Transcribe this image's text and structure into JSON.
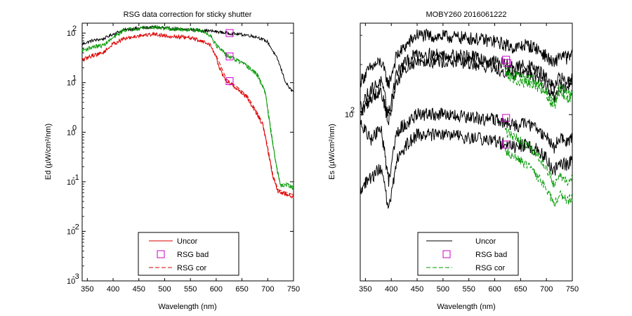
{
  "chart_data": [
    {
      "type": "line",
      "title": "RSG data correction for sticky shutter",
      "xlabel": "Wavelength (nm)",
      "ylabel": "Ed (µW/cm²/nm)",
      "xlim": [
        340,
        750
      ],
      "xticks": [
        350,
        400,
        450,
        500,
        550,
        600,
        650,
        700,
        750
      ],
      "ylog": true,
      "ylim_exp": [
        -3,
        2.2
      ],
      "yticks": [
        {
          "exp": 2,
          "label": "10",
          "sup": "2"
        },
        {
          "exp": 1,
          "label": "10",
          "sup": "1"
        },
        {
          "exp": 0,
          "label": "10",
          "sup": "0"
        },
        {
          "exp": -1,
          "label": "10",
          "sup": "-1"
        },
        {
          "exp": -2,
          "label": "10",
          "sup": "-2"
        },
        {
          "exp": -3,
          "label": "10",
          "sup": "-3"
        }
      ],
      "legend": {
        "position": "bottom-center",
        "entries": [
          {
            "label": "Uncor",
            "color": "#dd0000",
            "style": "solid"
          },
          {
            "label": "RSG bad",
            "color": "#cc00cc",
            "style": "square"
          },
          {
            "label": "RSG cor",
            "color": "#dd0000",
            "style": "dashed"
          }
        ]
      },
      "series": [
        {
          "color": "#000000",
          "style": "solid",
          "x": [
            340,
            360,
            380,
            400,
            420,
            450,
            480,
            500,
            520,
            550,
            580,
            600,
            620,
            640,
            660,
            680,
            700,
            720,
            735,
            745,
            750
          ],
          "logy": [
            1.78,
            1.85,
            1.88,
            1.98,
            2.06,
            2.1,
            2.12,
            2.1,
            2.08,
            2.07,
            2.05,
            2.03,
            2.0,
            1.98,
            1.96,
            1.92,
            1.82,
            1.45,
            1.0,
            0.85,
            0.82
          ],
          "noise": 0.03
        },
        {
          "color": "#009900",
          "style": "solid",
          "x": [
            340,
            360,
            380,
            400,
            420,
            450,
            480,
            500,
            520,
            550,
            570,
            590,
            600,
            620,
            640,
            660,
            680,
            695,
            705,
            715,
            725,
            735,
            745,
            750
          ],
          "logy": [
            1.65,
            1.72,
            1.75,
            1.9,
            2.06,
            2.1,
            2.12,
            2.1,
            2.08,
            2.07,
            2.05,
            1.95,
            1.75,
            1.55,
            1.45,
            1.33,
            1.15,
            0.8,
            0.1,
            -0.6,
            -1.1,
            -1.05,
            -1.1,
            -1.15
          ],
          "noise": 0.04
        },
        {
          "color": "#dd0000",
          "style": "solid",
          "x": [
            340,
            360,
            380,
            400,
            420,
            450,
            480,
            500,
            520,
            550,
            570,
            590,
            600,
            610,
            620,
            640,
            660,
            680,
            690,
            700,
            710,
            720,
            735,
            750
          ],
          "logy": [
            1.45,
            1.55,
            1.6,
            1.78,
            1.88,
            1.95,
            1.98,
            1.95,
            1.93,
            1.9,
            1.85,
            1.75,
            1.5,
            1.2,
            1.03,
            0.88,
            0.7,
            0.35,
            0.15,
            -0.35,
            -0.9,
            -1.2,
            -1.25,
            -1.3
          ],
          "noise": 0.04
        },
        {
          "color": "#009900",
          "style": "dashed",
          "x": [
            600,
            620,
            640,
            660,
            680,
            695,
            705,
            715,
            725,
            735,
            750
          ],
          "logy": [
            1.78,
            1.58,
            1.48,
            1.36,
            1.18,
            0.83,
            0.13,
            -0.57,
            -1.07,
            -1.02,
            -1.1
          ],
          "noise": 0.0
        },
        {
          "color": "#dd0000",
          "style": "dashed",
          "x": [
            600,
            620,
            640,
            660,
            680,
            690,
            700,
            710,
            720,
            735,
            750
          ],
          "logy": [
            1.55,
            1.07,
            0.92,
            0.74,
            0.39,
            0.19,
            -0.31,
            -0.86,
            -1.16,
            -1.21,
            -1.26
          ],
          "noise": 0.0
        }
      ],
      "markers": [
        {
          "x": 626,
          "logy": 2.0
        },
        {
          "x": 626,
          "logy": 1.53
        },
        {
          "x": 626,
          "logy": 1.03
        }
      ]
    },
    {
      "type": "line",
      "title": "MOBY260  2016061222",
      "xlabel": "Wavelength (nm)",
      "ylabel": "Es (µW/cm²/nm)",
      "xlim": [
        340,
        750
      ],
      "xticks": [
        350,
        400,
        450,
        500,
        550,
        600,
        650,
        700,
        750
      ],
      "ylog": true,
      "ylim_exp": [
        1.0,
        2.55
      ],
      "yticks": [
        {
          "exp": 2,
          "label": "10",
          "sup": "2"
        }
      ],
      "legend": {
        "position": "bottom-center",
        "entries": [
          {
            "label": "Uncor",
            "color": "#000000",
            "style": "solid"
          },
          {
            "label": "RSG bad",
            "color": "#cc00cc",
            "style": "square"
          },
          {
            "label": "RSG cor",
            "color": "#009900",
            "style": "dashed"
          }
        ]
      },
      "series": [
        {
          "color": "#000000",
          "style": "solid",
          "x": [
            340,
            360,
            380,
            395,
            410,
            430,
            450,
            480,
            500,
            550,
            600,
            620,
            640,
            660,
            680,
            700,
            715,
            725,
            740,
            750
          ],
          "logy": [
            2.2,
            2.28,
            2.32,
            2.18,
            2.35,
            2.42,
            2.48,
            2.47,
            2.47,
            2.46,
            2.44,
            2.42,
            2.4,
            2.42,
            2.4,
            2.35,
            2.3,
            2.36,
            2.34,
            2.36
          ],
          "noise": 0.04
        },
        {
          "color": "#000000",
          "style": "solid",
          "x": [
            340,
            360,
            380,
            395,
            410,
            430,
            450,
            480,
            500,
            550,
            600,
            620,
            640,
            660,
            680,
            700,
            715,
            725,
            740,
            750
          ],
          "logy": [
            2.05,
            2.15,
            2.2,
            2.0,
            2.25,
            2.32,
            2.37,
            2.36,
            2.36,
            2.35,
            2.32,
            2.3,
            2.28,
            2.3,
            2.27,
            2.22,
            2.15,
            2.22,
            2.2,
            2.22
          ],
          "noise": 0.04
        },
        {
          "color": "#000000",
          "style": "solid",
          "x": [
            340,
            360,
            380,
            395,
            410,
            430,
            450,
            480,
            500,
            550,
            600,
            620,
            640,
            660,
            680,
            700,
            715,
            725,
            740,
            750
          ],
          "logy": [
            2.0,
            2.1,
            2.15,
            1.95,
            2.2,
            2.28,
            2.33,
            2.32,
            2.32,
            2.31,
            2.28,
            2.26,
            2.24,
            2.26,
            2.23,
            2.18,
            2.1,
            2.17,
            2.15,
            2.17
          ],
          "noise": 0.04
        },
        {
          "color": "#000000",
          "style": "solid",
          "x": [
            340,
            360,
            380,
            395,
            410,
            430,
            450,
            480,
            500,
            550,
            600,
            620,
            640,
            660,
            680,
            700,
            715,
            725,
            740,
            750
          ],
          "logy": [
            1.95,
            1.85,
            1.92,
            1.6,
            1.9,
            1.95,
            2.0,
            2.0,
            2.0,
            1.98,
            1.97,
            1.95,
            1.93,
            1.95,
            1.92,
            1.87,
            1.8,
            1.86,
            1.84,
            1.86
          ],
          "noise": 0.04
        },
        {
          "color": "#000000",
          "style": "solid",
          "x": [
            340,
            360,
            380,
            395,
            410,
            430,
            450,
            480,
            500,
            550,
            600,
            620,
            640,
            660,
            680,
            700,
            715,
            725,
            740,
            750
          ],
          "logy": [
            1.55,
            1.62,
            1.68,
            1.42,
            1.72,
            1.82,
            1.88,
            1.88,
            1.88,
            1.86,
            1.84,
            1.82,
            1.8,
            1.82,
            1.79,
            1.74,
            1.65,
            1.72,
            1.7,
            1.72
          ],
          "noise": 0.04
        },
        {
          "color": "#009900",
          "style": "dashed",
          "x": [
            620,
            640,
            660,
            680,
            700,
            715,
            725,
            740,
            750
          ],
          "logy": [
            2.27,
            2.24,
            2.22,
            2.2,
            2.14,
            2.08,
            2.16,
            2.12,
            2.14
          ],
          "noise": 0.03
        },
        {
          "color": "#009900",
          "style": "dashed",
          "x": [
            620,
            640,
            660,
            680,
            700,
            715,
            725,
            740,
            750
          ],
          "logy": [
            2.24,
            2.21,
            2.19,
            2.17,
            2.11,
            2.05,
            2.13,
            2.09,
            2.11
          ],
          "noise": 0.03
        },
        {
          "color": "#009900",
          "style": "dashed",
          "x": [
            620,
            640,
            660,
            680,
            700,
            715,
            725,
            740,
            750
          ],
          "logy": [
            1.9,
            1.86,
            1.82,
            1.76,
            1.68,
            1.58,
            1.64,
            1.6,
            1.62
          ],
          "noise": 0.03
        },
        {
          "color": "#009900",
          "style": "dashed",
          "x": [
            620,
            640,
            660,
            680,
            700,
            715,
            725,
            740,
            750
          ],
          "logy": [
            1.78,
            1.74,
            1.7,
            1.64,
            1.56,
            1.45,
            1.52,
            1.48,
            1.5
          ],
          "noise": 0.03
        }
      ],
      "markers": [
        {
          "x": 622,
          "logy": 2.33
        },
        {
          "x": 624,
          "logy": 2.31
        },
        {
          "x": 622,
          "logy": 1.98
        },
        {
          "x": 622,
          "logy": 1.82
        }
      ]
    }
  ]
}
